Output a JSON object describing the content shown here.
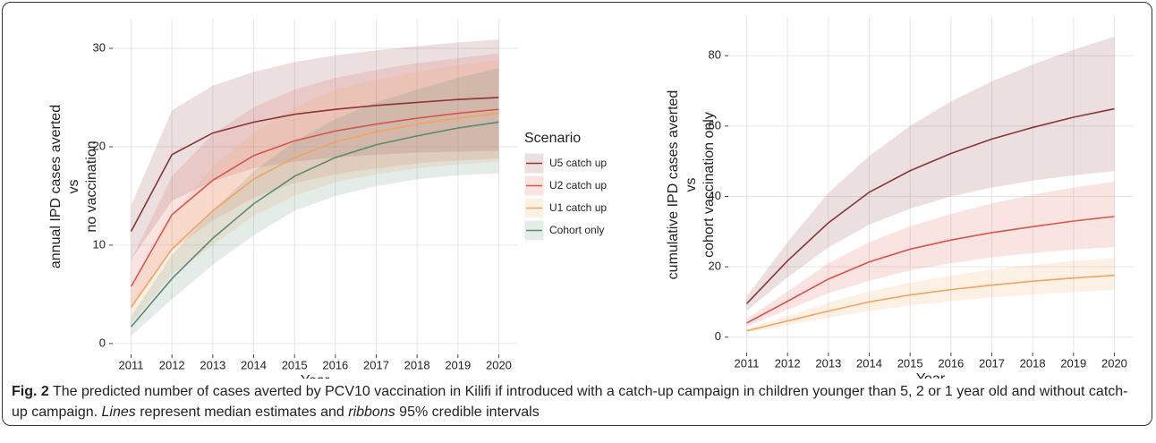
{
  "chart_data": [
    {
      "type": "line",
      "xlabel": "Year",
      "ylabel": [
        "annual IPD cases averted",
        "vs",
        "no vaccination"
      ],
      "x": [
        2011,
        2012,
        2013,
        2014,
        2015,
        2016,
        2017,
        2018,
        2019,
        2020
      ],
      "xticks": [
        2011,
        2012,
        2013,
        2014,
        2015,
        2016,
        2017,
        2018,
        2019,
        2020
      ],
      "xlim": [
        2010.55,
        2020.45
      ],
      "ylim": [
        -1.1,
        33
      ],
      "yticks": [
        0,
        10,
        20,
        30
      ],
      "grid": true,
      "legend": "right",
      "legend_title": "Scenario",
      "series": [
        {
          "name": "U5 catch up",
          "color": "#8b3535",
          "values": [
            11.4,
            19.2,
            21.4,
            22.5,
            23.3,
            23.8,
            24.2,
            24.5,
            24.8,
            25.0
          ],
          "upper": [
            14,
            23.7,
            26.2,
            27.6,
            28.6,
            29.3,
            29.8,
            30.2,
            30.6,
            30.9
          ],
          "lower": [
            8.5,
            14.5,
            16.5,
            17.8,
            18.5,
            18.9,
            19.2,
            19.4,
            19.5,
            19.6
          ]
        },
        {
          "name": "U2 catch up",
          "color": "#d9544d",
          "values": [
            5.8,
            13.1,
            16.6,
            19.1,
            20.6,
            21.6,
            22.3,
            22.9,
            23.4,
            23.8
          ],
          "upper": [
            8.5,
            17,
            21.3,
            24,
            25.8,
            27,
            27.8,
            28.5,
            29,
            29.5
          ],
          "lower": [
            3.5,
            9.5,
            12.5,
            14.8,
            16.3,
            17.2,
            17.8,
            18.3,
            18.6,
            18.8
          ]
        },
        {
          "name": "U1 catch up",
          "color": "#f2a35e",
          "values": [
            3.7,
            9.6,
            13.5,
            16.7,
            18.9,
            20.5,
            21.5,
            22.3,
            22.9,
            23.4
          ],
          "upper": [
            5.5,
            13,
            18,
            21.5,
            24,
            25.8,
            26.8,
            27.6,
            28.3,
            28.8
          ],
          "lower": [
            2,
            7,
            10,
            13,
            15,
            16.4,
            17.2,
            17.8,
            18.2,
            18.5
          ]
        },
        {
          "name": "Cohort only",
          "color": "#5a8a72",
          "values": [
            1.7,
            6.6,
            10.7,
            14.2,
            17.0,
            18.9,
            20.2,
            21.1,
            21.9,
            22.5
          ],
          "upper": [
            2.8,
            9,
            13.5,
            17.5,
            20.5,
            22.8,
            24.5,
            25.8,
            27,
            28
          ],
          "lower": [
            0.8,
            4.5,
            8,
            11,
            13.5,
            15,
            16,
            16.7,
            17.1,
            17.3
          ]
        }
      ]
    },
    {
      "type": "line",
      "xlabel": "Year",
      "ylabel": [
        "cumulative IPD cases averted",
        "vs",
        "cohort vaccination only"
      ],
      "x": [
        2011,
        2012,
        2013,
        2014,
        2015,
        2016,
        2017,
        2018,
        2019,
        2020
      ],
      "xticks": [
        2011,
        2012,
        2013,
        2014,
        2015,
        2016,
        2017,
        2018,
        2019,
        2020
      ],
      "xlim": [
        2010.55,
        2020.45
      ],
      "ylim": [
        -4.4,
        91
      ],
      "yticks": [
        0,
        20,
        40,
        60,
        80
      ],
      "grid": true,
      "series": [
        {
          "color": "#8b3535",
          "values": [
            9.5,
            21.7,
            32.5,
            41.2,
            47.3,
            52.2,
            56.3,
            59.6,
            62.5,
            64.9
          ],
          "upper": [
            11.5,
            27,
            41,
            51.5,
            60,
            67,
            72.7,
            77.5,
            81.7,
            85.4
          ],
          "lower": [
            7.5,
            17,
            25.5,
            32,
            36.5,
            40,
            42.5,
            44.5,
            46,
            47.2
          ]
        },
        {
          "color": "#d9544d",
          "values": [
            4,
            10.2,
            16.5,
            21.4,
            25,
            27.6,
            29.7,
            31.4,
            33,
            34.3
          ],
          "upper": [
            5.2,
            13,
            21,
            27,
            31.5,
            35,
            38,
            40.5,
            42.5,
            44.2
          ],
          "lower": [
            3,
            7.8,
            12.5,
            16,
            19,
            21,
            22.7,
            23.9,
            24.9,
            25.6
          ]
        },
        {
          "color": "#f2a35e",
          "values": [
            1.8,
            4.6,
            7.4,
            10,
            12,
            13.5,
            14.8,
            15.9,
            16.8,
            17.6
          ],
          "upper": [
            2.4,
            6,
            9.8,
            13,
            15.5,
            17.5,
            19.2,
            20.5,
            21.6,
            22.5
          ],
          "lower": [
            1.2,
            3.4,
            5.5,
            7.4,
            9,
            10.2,
            11.3,
            12.1,
            12.8,
            13.4
          ]
        }
      ]
    }
  ],
  "caption": {
    "label": "Fig. 2",
    "parts": [
      "The predicted number of cases averted by PCV10 vaccination in Kilifi if introduced with a catch-up campaign in children younger than 5, 2 or 1 year old and without catch-up campaign. ",
      "Lines",
      " represent median estimates and ",
      "ribbons",
      " 95% credible intervals"
    ]
  }
}
